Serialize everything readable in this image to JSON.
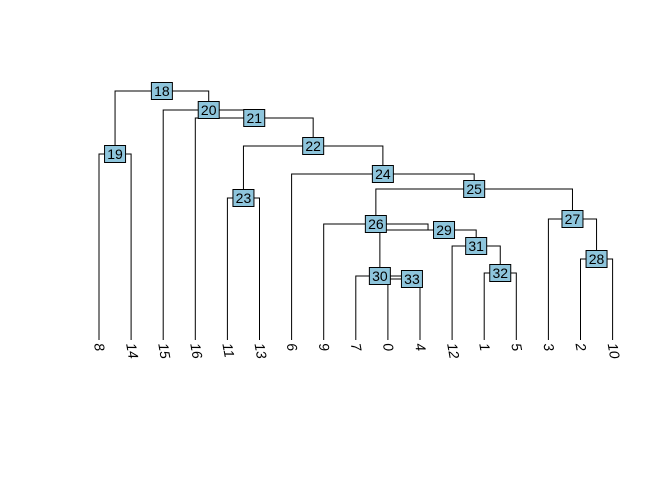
{
  "diagram": {
    "type": "dendrogram",
    "box_color": "#8ec5dc",
    "leaves": [
      "8",
      "14",
      "15",
      "16",
      "11",
      "13",
      "6",
      "9",
      "7",
      "0",
      "4",
      "12",
      "1",
      "5",
      "3",
      "2",
      "10"
    ],
    "internal_nodes": [
      {
        "id": "18",
        "children": [
          "19",
          "20"
        ]
      },
      {
        "id": "19",
        "children": [
          "8",
          "14"
        ]
      },
      {
        "id": "20",
        "children": [
          "15",
          "21"
        ]
      },
      {
        "id": "21",
        "children": [
          "16",
          "22"
        ]
      },
      {
        "id": "22",
        "children": [
          "23",
          "24"
        ]
      },
      {
        "id": "23",
        "children": [
          "11",
          "13"
        ]
      },
      {
        "id": "24",
        "children": [
          "6",
          "25"
        ]
      },
      {
        "id": "25",
        "children": [
          "26",
          "27"
        ]
      },
      {
        "id": "26",
        "children": [
          "9",
          "29"
        ]
      },
      {
        "id": "29",
        "children": [
          "30",
          "31"
        ]
      },
      {
        "id": "30",
        "children": [
          "7",
          "33"
        ]
      },
      {
        "id": "33",
        "children": [
          "0",
          "4"
        ]
      },
      {
        "id": "31",
        "children": [
          "12",
          "32"
        ]
      },
      {
        "id": "32",
        "children": [
          "1",
          "5"
        ]
      },
      {
        "id": "27",
        "children": [
          "3",
          "28"
        ]
      },
      {
        "id": "28",
        "children": [
          "2",
          "10"
        ]
      }
    ]
  }
}
